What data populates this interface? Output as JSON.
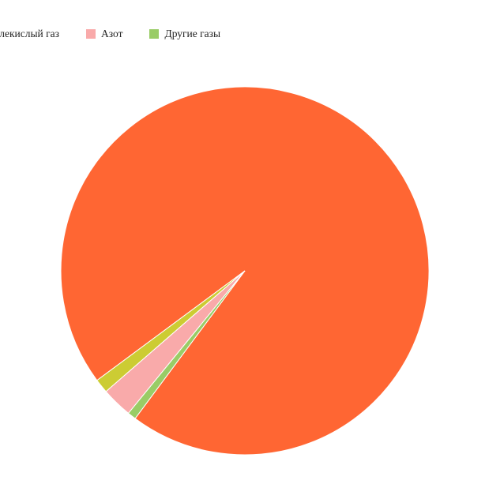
{
  "chart_data": {
    "type": "pie",
    "title": "",
    "legend_position": "top",
    "slices": [
      {
        "label": "Углекислый газ",
        "value": 95.32,
        "color": "#ff6633"
      },
      {
        "label": "Азот",
        "value": 2.7,
        "color": "#f9aaaa"
      },
      {
        "label": "Другие газы",
        "value": 0.74,
        "color": "#99cc66"
      },
      {
        "label": "",
        "value": 1.24,
        "color": "#cccc33"
      }
    ]
  }
}
